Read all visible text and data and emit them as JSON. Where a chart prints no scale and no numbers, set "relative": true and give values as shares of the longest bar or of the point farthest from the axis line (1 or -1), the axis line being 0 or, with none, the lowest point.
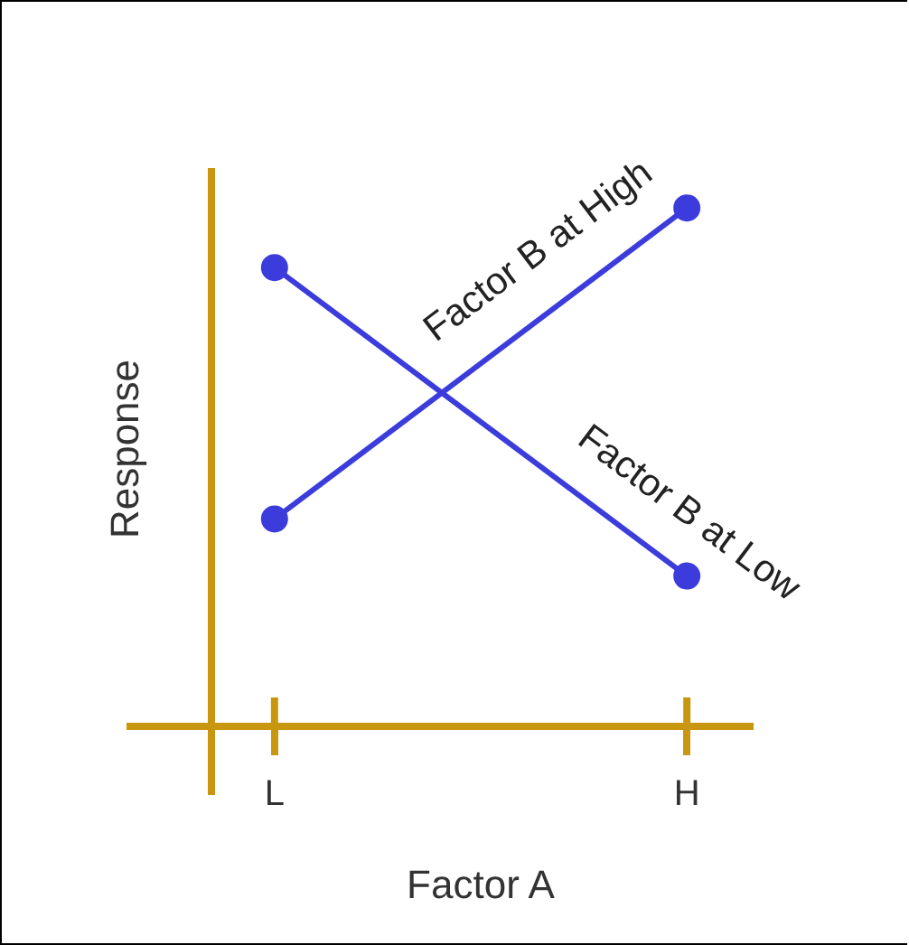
{
  "chart_data": {
    "type": "line",
    "relative": true,
    "xlabel": "Factor A",
    "ylabel": "Response",
    "categories": [
      "L",
      "H"
    ],
    "series": [
      {
        "name": "Factor B at High",
        "color": "#3c3cdc",
        "values": [
          0.4,
          1
        ]
      },
      {
        "name": "Factor B at Low",
        "color": "#3c3cdc",
        "values": [
          0.885,
          0.29
        ]
      }
    ],
    "marker": "circle",
    "line_style": "solid"
  }
}
